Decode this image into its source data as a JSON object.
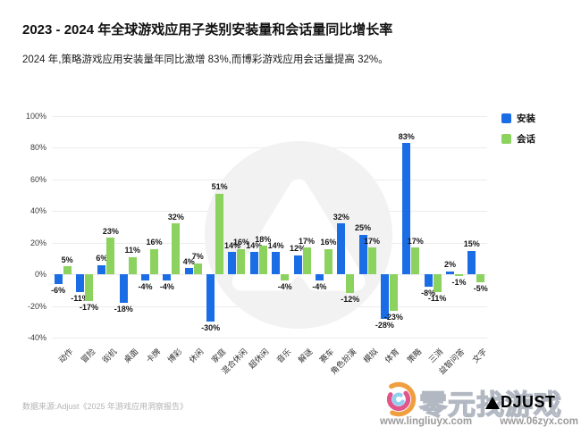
{
  "header": {
    "title": "2023 - 2024 年全球游戏应用子类别安装量和会话量同比增长率",
    "subtitle": "2024 年,策略游戏应用安装量年同比激增 83%,而博彩游戏应用会话量提高 32%。"
  },
  "legend": [
    {
      "label": "安装",
      "color": "#1A6DE5"
    },
    {
      "label": "会话",
      "color": "#8CD25E"
    }
  ],
  "chart_data": {
    "type": "bar",
    "categories": [
      "动作",
      "冒险",
      "街机",
      "桌面",
      "卡牌",
      "博彩",
      "休闲",
      "家庭",
      "混合休闲",
      "超休闲",
      "音乐",
      "解谜",
      "赛车",
      "角色扮演",
      "模拟",
      "体育",
      "策略",
      "三消",
      "益智问答",
      "文字"
    ],
    "series": [
      {
        "name": "安装",
        "color": "#1A6DE5",
        "values": [
          -6,
          -11,
          6,
          -18,
          -4,
          -4,
          4,
          -30,
          14,
          14,
          14,
          12,
          -4,
          32,
          25,
          -28,
          83,
          -8,
          2,
          15
        ]
      },
      {
        "name": "会话",
        "color": "#8CD25E",
        "values": [
          5,
          -17,
          23,
          11,
          16,
          32,
          7,
          51,
          16,
          18,
          -4,
          17,
          16,
          -12,
          17,
          -23,
          17,
          -11,
          -1,
          -5
        ]
      }
    ],
    "value_label_format": "{v}%",
    "ytick_labels": [
      "100%",
      "80%",
      "60%",
      "40%",
      "20%",
      "0%",
      "-20%",
      "-40%"
    ],
    "ylim": [
      -40,
      100
    ],
    "grid": true,
    "legend_position": "top-right",
    "title": "2023 - 2024 年全球游戏应用子类别安装量和会话量同比增长率",
    "xlabel": "",
    "ylabel": ""
  },
  "watermark": {
    "center_logo": "adjust-a-logo"
  },
  "footer": {
    "source": "数据来源:Adjust《2025 年游戏应用洞察报告》",
    "watermark_text": "零元找游戏",
    "adjust_logo_text": "DJUST",
    "url_left": "www.lingliuyx.com",
    "url_right": "www.06zyx.com"
  }
}
